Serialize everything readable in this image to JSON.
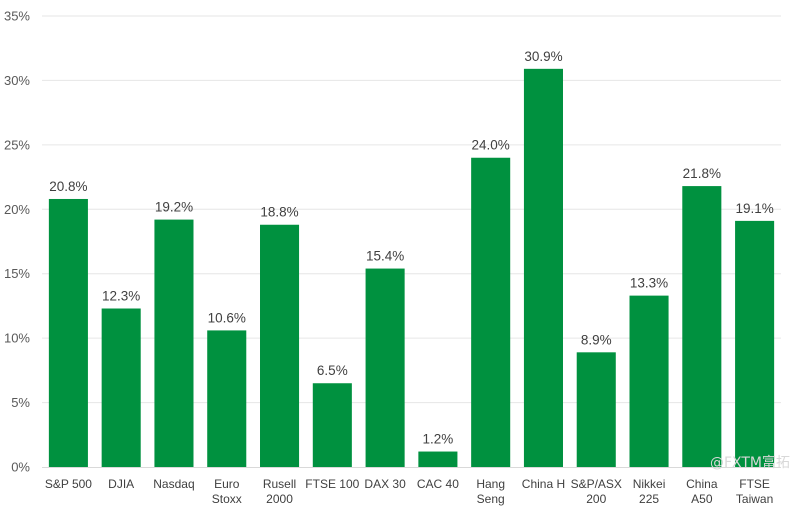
{
  "chart_data": {
    "type": "bar",
    "title": "",
    "xlabel": "",
    "ylabel": "",
    "ylim": [
      0,
      35
    ],
    "y_ticks": [
      "0%",
      "5%",
      "10%",
      "15%",
      "20%",
      "25%",
      "30%",
      "35%"
    ],
    "y_tick_values": [
      0,
      5,
      10,
      15,
      20,
      25,
      30,
      35
    ],
    "grid": true,
    "bar_color": "#00913f",
    "categories": [
      [
        "S&P 500"
      ],
      [
        "DJIA"
      ],
      [
        "Nasdaq"
      ],
      [
        "Euro",
        "Stoxx"
      ],
      [
        "Rusell",
        "2000"
      ],
      [
        "FTSE 100"
      ],
      [
        "DAX 30"
      ],
      [
        "CAC 40"
      ],
      [
        "Hang",
        "Seng"
      ],
      [
        "China H"
      ],
      [
        "S&P/ASX",
        "200"
      ],
      [
        "Nikkei",
        "225"
      ],
      [
        "China",
        "A50"
      ],
      [
        "FTSE",
        "Taiwan"
      ]
    ],
    "values": [
      20.8,
      12.3,
      19.2,
      10.6,
      18.8,
      6.5,
      15.4,
      1.2,
      24.0,
      30.9,
      8.9,
      13.3,
      21.8,
      19.1
    ],
    "data_labels": [
      "20.8%",
      "12.3%",
      "19.2%",
      "10.6%",
      "18.8%",
      "6.5%",
      "15.4%",
      "1.2%",
      "24.0%",
      "30.9%",
      "8.9%",
      "13.3%",
      "21.8%",
      "19.1%"
    ]
  },
  "watermark": "@FXTM富拓"
}
